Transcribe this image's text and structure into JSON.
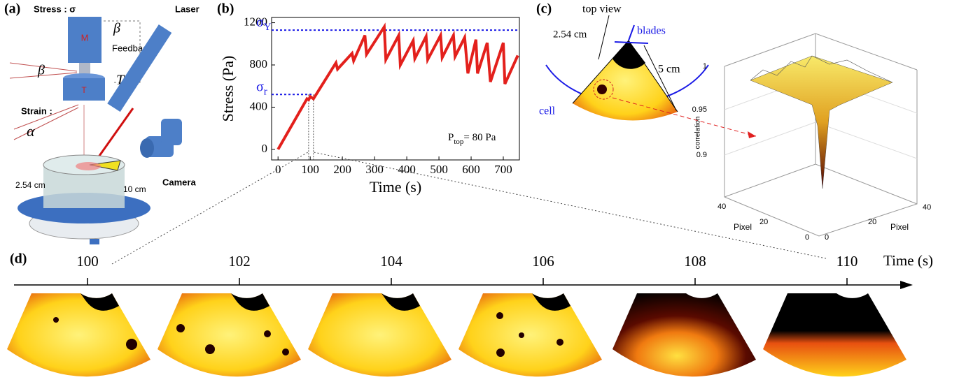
{
  "panel_a": {
    "label": "(a)",
    "stress": "Stress : σ",
    "motor": "M",
    "beta_top": "β",
    "feedback": "Feedback",
    "beta_left": "β",
    "transducer": "T",
    "torque": "T",
    "strain": "Strain :",
    "alpha": "α",
    "laser": "Laser",
    "camera": "Camera",
    "depth": "2.54 cm",
    "height": "10 cm"
  },
  "panel_b": {
    "label": "(b)"
  },
  "chart_data": {
    "type": "line",
    "x_label": "Time (s)",
    "y_label": "Stress (Pa)",
    "xlim": [
      -20,
      750
    ],
    "ylim": [
      -100,
      1250
    ],
    "xticks": [
      0,
      100,
      200,
      300,
      400,
      500,
      600,
      700
    ],
    "yticks": [
      0,
      400,
      800,
      1200
    ],
    "series": [
      {
        "color": "#e3201c",
        "x": [
          0,
          90,
          95,
          100,
          110,
          180,
          185,
          230,
          235,
          270,
          275,
          330,
          335,
          375,
          380,
          420,
          425,
          460,
          465,
          505,
          510,
          545,
          550,
          580,
          590,
          615,
          620,
          650,
          660,
          700,
          705,
          745
        ],
        "values": [
          0,
          480,
          470,
          500,
          480,
          820,
          760,
          910,
          840,
          1080,
          900,
          1160,
          850,
          1080,
          800,
          1030,
          860,
          1070,
          850,
          1080,
          870,
          1080,
          880,
          1060,
          720,
          1040,
          720,
          1010,
          640,
          1010,
          620,
          890
        ]
      }
    ],
    "reference_lines": [
      {
        "symbol": "σ",
        "subscript": "Y",
        "value": 1130,
        "color": "#1a1ae6"
      },
      {
        "symbol": "σ",
        "subscript": "r",
        "value": 520,
        "x_end": 110,
        "color": "#1a1ae6"
      }
    ],
    "zoom_range": [
      95,
      110
    ],
    "annotation": {
      "main": "P",
      "subscript": "top",
      "rest": "= 80 Pa"
    }
  },
  "panel_c": {
    "label": "(c)",
    "top_view": "top view",
    "diameter": "2.54 cm",
    "blades": "blades",
    "length": "5 cm",
    "cell": "cell",
    "z_label": "correlation",
    "z_ticks": [
      "1",
      "0.95",
      "0.9"
    ],
    "left_ticks": [
      "40",
      "20",
      "0"
    ],
    "right_ticks": [
      "0",
      "20",
      "40"
    ],
    "left_axis": "Pixel",
    "right_axis": "Pixel"
  },
  "panel_d": {
    "label": "(d)",
    "times": [
      "100",
      "102",
      "104",
      "106",
      "108",
      "110"
    ],
    "axis_label": "Time (s)"
  }
}
